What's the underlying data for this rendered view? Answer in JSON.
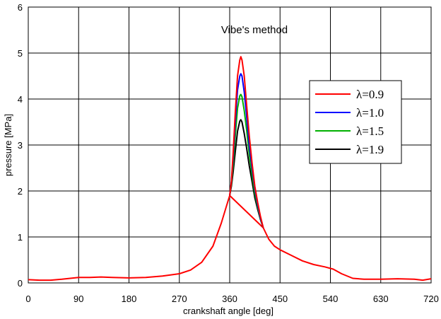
{
  "chart_data": {
    "type": "line",
    "title": "Vibe's method",
    "xlabel": "crankshaft angle [deg]",
    "ylabel": "pressure [MPa]",
    "xlim": [
      0,
      720
    ],
    "ylim": [
      0,
      6
    ],
    "xticks": [
      "0",
      "90",
      "180",
      "270",
      "360",
      "450",
      "540",
      "630",
      "720"
    ],
    "yticks": [
      "0",
      "1",
      "2",
      "3",
      "4",
      "5",
      "6"
    ],
    "grid": true,
    "legend_position": "right",
    "base_curve": {
      "color": "#ff0000",
      "x": [
        0,
        20,
        40,
        60,
        90,
        110,
        130,
        150,
        180,
        210,
        240,
        270,
        290,
        310,
        330,
        345,
        355,
        360,
        420,
        430,
        440,
        450,
        470,
        490,
        510,
        530,
        545,
        560,
        580,
        600,
        630,
        660,
        690,
        705,
        720
      ],
      "y": [
        0.07,
        0.06,
        0.06,
        0.08,
        0.12,
        0.12,
        0.13,
        0.12,
        0.11,
        0.12,
        0.15,
        0.2,
        0.28,
        0.45,
        0.8,
        1.3,
        1.7,
        1.9,
        1.2,
        0.95,
        0.8,
        0.72,
        0.6,
        0.48,
        0.4,
        0.35,
        0.3,
        0.2,
        0.1,
        0.08,
        0.08,
        0.09,
        0.08,
        0.06,
        0.09
      ]
    },
    "series": [
      {
        "name": "λ=0.9",
        "color": "#ff0000",
        "x": [
          360,
          363,
          366,
          370,
          374,
          378,
          380,
          382,
          386,
          390,
          395,
          400,
          405,
          410,
          415,
          420
        ],
        "y": [
          1.9,
          2.2,
          2.8,
          3.7,
          4.5,
          4.85,
          4.92,
          4.85,
          4.5,
          3.9,
          3.2,
          2.6,
          2.1,
          1.75,
          1.45,
          1.2
        ]
      },
      {
        "name": "λ=1.0",
        "color": "#0000ff",
        "x": [
          360,
          363,
          366,
          370,
          374,
          378,
          380,
          382,
          386,
          390,
          395,
          400,
          405,
          410,
          415,
          420
        ],
        "y": [
          1.9,
          2.2,
          2.7,
          3.5,
          4.2,
          4.5,
          4.55,
          4.5,
          4.15,
          3.65,
          3.0,
          2.5,
          2.05,
          1.7,
          1.42,
          1.2
        ]
      },
      {
        "name": "λ=1.5",
        "color": "#00b000",
        "x": [
          360,
          363,
          366,
          370,
          374,
          378,
          380,
          382,
          386,
          390,
          395,
          400,
          405,
          410,
          415,
          420
        ],
        "y": [
          1.9,
          2.15,
          2.55,
          3.2,
          3.8,
          4.07,
          4.1,
          4.05,
          3.75,
          3.35,
          2.8,
          2.35,
          1.95,
          1.65,
          1.4,
          1.2
        ]
      },
      {
        "name": "λ=1.9",
        "color": "#000000",
        "x": [
          360,
          363,
          366,
          370,
          374,
          378,
          380,
          382,
          386,
          390,
          395,
          400,
          405,
          410,
          415,
          420
        ],
        "y": [
          1.9,
          2.1,
          2.4,
          2.85,
          3.3,
          3.52,
          3.55,
          3.5,
          3.25,
          2.95,
          2.55,
          2.2,
          1.85,
          1.6,
          1.38,
          1.2
        ]
      }
    ]
  }
}
